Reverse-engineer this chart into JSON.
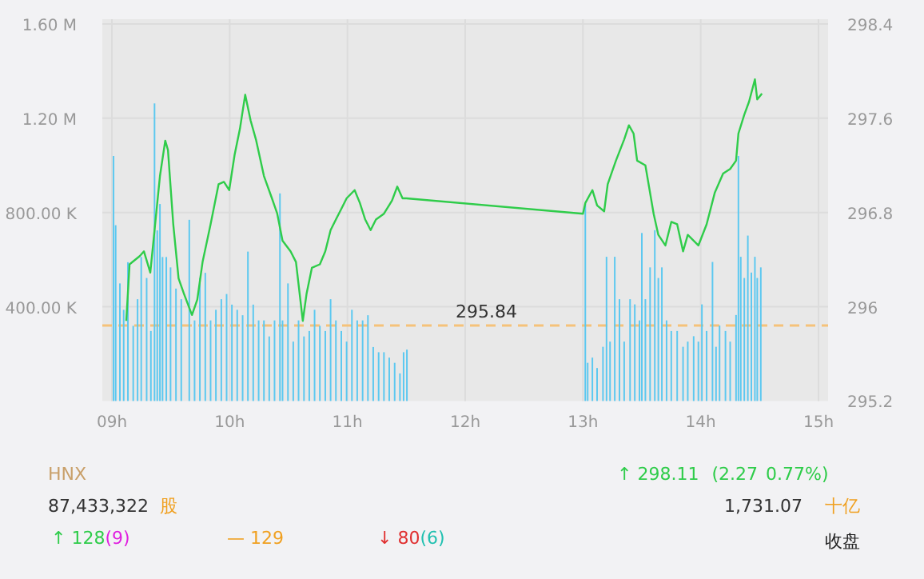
{
  "chart_data": [
    {
      "type": "bar",
      "xlim": [
        9,
        15
      ],
      "xticks": [
        {
          "value": 9,
          "label": "09h"
        },
        {
          "value": 10,
          "label": "10h"
        },
        {
          "value": 11,
          "label": "11h"
        },
        {
          "value": 12,
          "label": "12h"
        },
        {
          "value": 13,
          "label": "13h"
        },
        {
          "value": 14,
          "label": "14h"
        },
        {
          "value": 15,
          "label": "15h"
        }
      ],
      "ylim": [
        0,
        1600000
      ],
      "yticks": [
        {
          "value": 400000,
          "label": "400.00 K"
        },
        {
          "value": 800000,
          "label": "800.00 K"
        },
        {
          "value": 1200000,
          "label": "1.20 M"
        },
        {
          "value": 1600000,
          "label": "1.60 M"
        }
      ],
      "y2lim": [
        295.2,
        298.4
      ],
      "y2ticks": [
        295.2,
        296,
        296.8,
        297.6,
        298.4
      ],
      "grid": true,
      "ref_lines": [
        {
          "axis": "y2",
          "value": 295.84,
          "label": "295.84",
          "color": "#f5c27a",
          "line_style": "dashed"
        }
      ],
      "series": [
        {
          "type": "bar",
          "color": "#5bc8f0",
          "x": [
            9.014,
            9.032,
            9.068,
            9.1,
            9.136,
            9.181,
            9.218,
            9.249,
            9.295,
            9.331,
            9.362,
            9.385,
            9.408,
            9.43,
            9.462,
            9.498,
            9.544,
            9.589,
            9.657,
            9.702,
            9.747,
            9.793,
            9.838,
            9.883,
            9.929,
            9.974,
            10.019,
            10.064,
            10.11,
            10.155,
            10.2,
            10.246,
            10.291,
            10.336,
            10.381,
            10.427,
            10.449,
            10.495,
            10.54,
            10.585,
            10.631,
            10.676,
            10.721,
            10.766,
            10.812,
            10.857,
            10.902,
            10.948,
            10.993,
            11.038,
            11.083,
            11.129,
            11.174,
            11.219,
            11.265,
            11.31,
            11.355,
            11.401,
            11.446,
            11.477,
            11.505,
            13.02,
            13.04,
            13.08,
            13.12,
            13.17,
            13.2,
            13.23,
            13.27,
            13.31,
            13.35,
            13.4,
            13.44,
            13.48,
            13.5,
            13.53,
            13.57,
            13.61,
            13.64,
            13.67,
            13.71,
            13.75,
            13.8,
            13.85,
            13.89,
            13.94,
            13.98,
            14.01,
            14.05,
            14.1,
            14.13,
            14.16,
            14.21,
            14.25,
            14.3,
            14.32,
            14.34,
            14.37,
            14.4,
            14.43,
            14.46,
            14.48,
            14.51
          ],
          "values": [
            1040000,
            746000,
            499000,
            387000,
            589000,
            319000,
            432000,
            611000,
            522000,
            297000,
            1263000,
            724000,
            836000,
            611000,
            611000,
            567000,
            477000,
            432000,
            769000,
            342000,
            522000,
            544000,
            342000,
            387000,
            432000,
            454000,
            409000,
            387000,
            364000,
            634000,
            409000,
            342000,
            342000,
            274000,
            342000,
            881000,
            342000,
            499000,
            252000,
            342000,
            274000,
            297000,
            387000,
            319000,
            297000,
            432000,
            342000,
            297000,
            252000,
            387000,
            342000,
            342000,
            364000,
            229000,
            207000,
            207000,
            184000,
            162000,
            117000,
            207000,
            218000,
            837000,
            162000,
            184000,
            140000,
            230000,
            612000,
            252000,
            612000,
            432000,
            252000,
            432000,
            410000,
            342000,
            713000,
            432000,
            567000,
            725000,
            522000,
            567000,
            342000,
            297000,
            297000,
            230000,
            252000,
            275000,
            252000,
            410000,
            297000,
            590000,
            230000,
            320000,
            297000,
            252000,
            365000,
            1040000,
            612000,
            522000,
            702000,
            545000,
            612000,
            522000,
            567000
          ]
        },
        {
          "type": "line",
          "axis": "y2",
          "color": "#2fcc4a",
          "x": [
            9.122,
            9.15,
            9.236,
            9.272,
            9.326,
            9.362,
            9.408,
            9.453,
            9.476,
            9.521,
            9.566,
            9.612,
            9.68,
            9.725,
            9.77,
            9.838,
            9.906,
            9.951,
            9.996,
            10.042,
            10.087,
            10.132,
            10.178,
            10.223,
            10.291,
            10.359,
            10.404,
            10.449,
            10.517,
            10.563,
            10.621,
            10.653,
            10.698,
            10.766,
            10.812,
            10.857,
            10.902,
            10.948,
            10.993,
            11.061,
            11.106,
            11.151,
            11.197,
            11.242,
            11.31,
            11.378,
            11.423,
            11.468,
            11.5,
            13.0,
            13.02,
            13.08,
            13.12,
            13.18,
            13.21,
            13.28,
            13.35,
            13.39,
            13.43,
            13.46,
            13.53,
            13.6,
            13.64,
            13.7,
            13.75,
            13.8,
            13.85,
            13.89,
            13.98,
            14.05,
            14.12,
            14.19,
            14.25,
            14.3,
            14.32,
            14.37,
            14.41,
            14.46,
            14.48,
            14.52
          ],
          "values": [
            295.88,
            296.36,
            296.43,
            296.47,
            296.29,
            296.65,
            297.11,
            297.41,
            297.33,
            296.7,
            296.24,
            296.11,
            295.93,
            296.06,
            296.38,
            296.7,
            297.04,
            297.06,
            296.99,
            297.29,
            297.51,
            297.8,
            297.58,
            297.42,
            297.11,
            296.92,
            296.79,
            296.56,
            296.47,
            296.38,
            295.88,
            296.11,
            296.33,
            296.36,
            296.47,
            296.65,
            296.74,
            296.83,
            296.92,
            296.99,
            296.88,
            296.74,
            296.65,
            296.74,
            296.79,
            296.9,
            297.02,
            296.92,
            296.92,
            296.79,
            296.88,
            296.99,
            296.86,
            296.81,
            297.04,
            297.24,
            297.42,
            297.54,
            297.47,
            297.24,
            297.2,
            296.79,
            296.61,
            296.52,
            296.72,
            296.7,
            296.47,
            296.61,
            296.52,
            296.7,
            296.97,
            297.13,
            297.17,
            297.24,
            297.47,
            297.63,
            297.74,
            297.93,
            297.76,
            297.81
          ]
        }
      ]
    },
    {
      "type": "other",
      "annotations": [
        "HNX",
        "87,433,322",
        "股",
        "↑ 298.11",
        "(2.27",
        "0.77%)",
        "1,731.07",
        "十亿",
        "收盘",
        "↑ 128",
        "(9)",
        "— 129",
        "↓ 80",
        "(6)"
      ],
      "colors": [
        "#c9a06a",
        "#333333",
        "#f0a020",
        "#2fcc4a",
        "#2fcc4a",
        "#2fcc4a",
        "#333333",
        "#f0a020",
        "#222222",
        "#2fcc4a",
        "#e020e0",
        "#f0a020",
        "#e03030",
        "#20c0b0"
      ]
    }
  ]
}
